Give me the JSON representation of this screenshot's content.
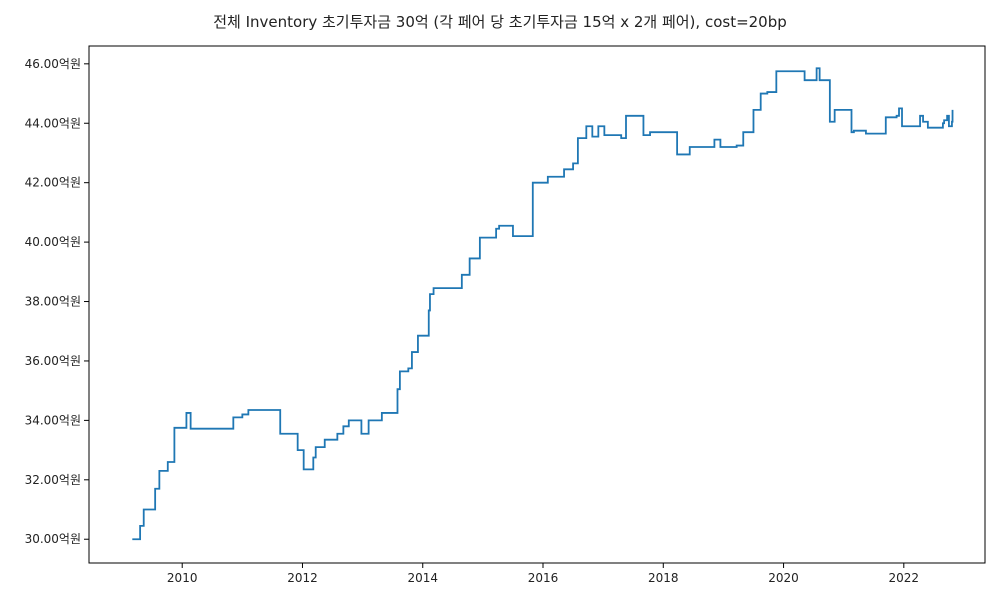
{
  "chart_data": {
    "type": "line",
    "title": "전체 Inventory 초기투자금 30억 (각 페어 당 초기투자금 15억 x 2개 페어), cost=20bp",
    "xlabel": "",
    "ylabel": "",
    "xlim": [
      2008.45,
      2023.35
    ],
    "ylim": [
      29.2,
      46.6
    ],
    "x_ticks": [
      2010,
      2012,
      2014,
      2016,
      2018,
      2020,
      2022
    ],
    "x_tick_labels": [
      "2010",
      "2012",
      "2014",
      "2016",
      "2018",
      "2020",
      "2022"
    ],
    "y_ticks": [
      30,
      32,
      34,
      36,
      38,
      40,
      42,
      44,
      46
    ],
    "y_tick_labels": [
      "30.00억원",
      "32.00억원",
      "34.00억원",
      "36.00억원",
      "38.00억원",
      "40.00억원",
      "42.00억원",
      "44.00억원",
      "46.00억원"
    ],
    "grid": false,
    "legend": "none",
    "series": [
      {
        "color": "#1f77b4",
        "step": true,
        "x": [
          2009.17,
          2009.3,
          2009.36,
          2009.55,
          2009.62,
          2009.76,
          2009.87,
          2010.07,
          2010.14,
          2010.85,
          2011.0,
          2011.1,
          2011.6,
          2011.63,
          2011.92,
          2012.02,
          2012.18,
          2012.22,
          2012.37,
          2012.58,
          2012.68,
          2012.77,
          2012.98,
          2013.1,
          2013.32,
          2013.58,
          2013.62,
          2013.65,
          2013.76,
          2013.82,
          2013.92,
          2014.1,
          2014.12,
          2014.18,
          2014.65,
          2014.78,
          2014.95,
          2015.22,
          2015.27,
          2015.5,
          2015.83,
          2016.08,
          2016.35,
          2016.5,
          2016.58,
          2016.72,
          2016.82,
          2016.92,
          2017.02,
          2017.3,
          2017.38,
          2017.67,
          2017.78,
          2018.23,
          2018.44,
          2018.85,
          2018.95,
          2019.22,
          2019.33,
          2019.5,
          2019.62,
          2019.73,
          2019.88,
          2020.35,
          2020.55,
          2020.58,
          2020.6,
          2020.77,
          2020.85,
          2021.13,
          2021.17,
          2021.37,
          2021.7,
          2021.8,
          2021.88,
          2021.92,
          2021.97,
          2022.27,
          2022.32,
          2022.4,
          2022.65,
          2022.66,
          2022.67,
          2022.72,
          2022.75,
          2022.8,
          2022.81
        ],
        "y": [
          30.0,
          30.45,
          31.0,
          31.7,
          32.3,
          32.6,
          33.75,
          34.25,
          33.72,
          34.1,
          34.2,
          34.35,
          34.35,
          33.55,
          33.0,
          32.35,
          32.75,
          33.1,
          33.35,
          33.55,
          33.8,
          34.0,
          33.55,
          34.0,
          34.25,
          35.05,
          35.65,
          35.65,
          35.75,
          36.3,
          36.85,
          37.7,
          38.25,
          38.45,
          38.9,
          39.45,
          40.15,
          40.45,
          40.55,
          40.2,
          42.0,
          42.2,
          42.45,
          42.65,
          43.5,
          43.9,
          43.55,
          43.9,
          43.6,
          43.5,
          44.25,
          43.6,
          43.7,
          42.95,
          43.2,
          43.45,
          43.2,
          43.25,
          43.7,
          44.45,
          45.0,
          45.05,
          45.75,
          45.45,
          45.85,
          45.85,
          45.45,
          44.05,
          44.45,
          43.7,
          43.75,
          43.65,
          44.2,
          44.2,
          44.25,
          44.5,
          43.9,
          44.25,
          44.05,
          43.85,
          44.0,
          44.0,
          44.1,
          44.25,
          43.9,
          44.05,
          44.45
        ]
      }
    ]
  }
}
